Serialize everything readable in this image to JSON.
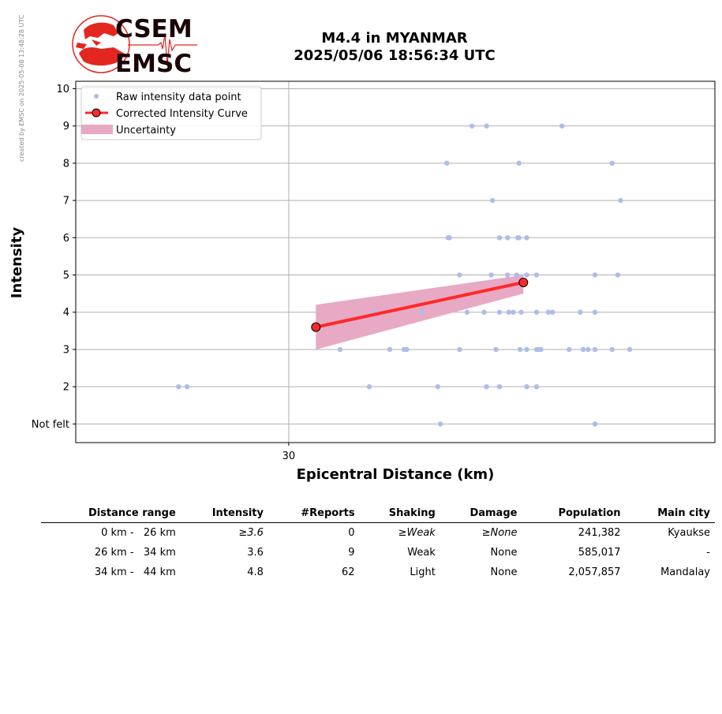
{
  "credit": "created by EMSC on 2025-05-08 13:48:28 UTC",
  "logo": {
    "line1": "CSEM",
    "line2": "EMSC"
  },
  "title": {
    "line1": "M4.4 in MYANMAR",
    "line2": "2025/05/06 18:56:34 UTC"
  },
  "colors": {
    "raw": "#aebde8",
    "curve": "#ff2a2a",
    "uncertainty": "#e8a9c4",
    "brand": "#e3261f"
  },
  "chart_data": {
    "type": "scatter",
    "xlabel": "Epicentral Distance (km)",
    "ylabel": "Intensity",
    "xscale": "log",
    "xlim": [
      19.96,
      67.8
    ],
    "ylim": [
      0.5,
      10.2
    ],
    "xticks": [
      30
    ],
    "xtick_labels": [
      "30"
    ],
    "yticks": [
      1,
      2,
      3,
      4,
      5,
      6,
      7,
      8,
      9,
      10
    ],
    "ytick_labels": [
      "Not felt",
      "2",
      "3",
      "4",
      "5",
      "6",
      "7",
      "8",
      "9",
      "10"
    ],
    "grid": true,
    "legend_position": "top-left",
    "legend": [
      "Raw intensity data point",
      "Corrected Intensity Curve",
      "Uncertainty"
    ],
    "raw_points": [
      [
        24.3,
        2
      ],
      [
        24.7,
        2
      ],
      [
        33.1,
        3
      ],
      [
        35.3,
        4
      ],
      [
        35.0,
        2
      ],
      [
        36.4,
        3
      ],
      [
        37.4,
        3
      ],
      [
        37.6,
        3
      ],
      [
        38.7,
        4
      ],
      [
        39.9,
        2
      ],
      [
        40.1,
        1
      ],
      [
        40.7,
        6
      ],
      [
        40.8,
        6
      ],
      [
        40.6,
        8
      ],
      [
        41.6,
        5
      ],
      [
        41.6,
        3
      ],
      [
        42.2,
        4
      ],
      [
        42.6,
        9
      ],
      [
        43.6,
        4
      ],
      [
        43.8,
        9
      ],
      [
        43.8,
        2
      ],
      [
        44.2,
        5
      ],
      [
        44.3,
        7
      ],
      [
        44.6,
        3
      ],
      [
        44.9,
        6
      ],
      [
        44.9,
        4
      ],
      [
        44.9,
        2
      ],
      [
        44.9,
        2
      ],
      [
        45.6,
        6
      ],
      [
        45.6,
        5
      ],
      [
        45.7,
        4
      ],
      [
        46.1,
        4
      ],
      [
        46.4,
        5
      ],
      [
        46.5,
        6
      ],
      [
        46.6,
        6
      ],
      [
        46.6,
        8
      ],
      [
        46.7,
        3
      ],
      [
        46.8,
        4
      ],
      [
        47.3,
        6
      ],
      [
        47.3,
        5
      ],
      [
        47.3,
        3
      ],
      [
        47.3,
        2
      ],
      [
        48.2,
        5
      ],
      [
        48.2,
        4
      ],
      [
        48.2,
        3
      ],
      [
        48.2,
        2
      ],
      [
        48.4,
        3
      ],
      [
        48.6,
        3
      ],
      [
        49.3,
        4
      ],
      [
        49.7,
        4
      ],
      [
        50.6,
        9
      ],
      [
        51.3,
        3
      ],
      [
        52.4,
        4
      ],
      [
        52.7,
        3
      ],
      [
        53.2,
        3
      ],
      [
        53.9,
        5
      ],
      [
        53.9,
        4
      ],
      [
        53.9,
        3
      ],
      [
        53.9,
        1
      ],
      [
        55.7,
        8
      ],
      [
        55.7,
        3
      ],
      [
        56.3,
        5
      ],
      [
        56.6,
        7
      ],
      [
        57.6,
        3
      ]
    ],
    "corrected_curve": {
      "x": [
        31.6,
        47.0
      ],
      "y": [
        3.6,
        4.8
      ]
    },
    "uncertainty": {
      "x": [
        31.6,
        47.0
      ],
      "lower": [
        3.0,
        4.5
      ],
      "upper": [
        4.2,
        5.0
      ]
    }
  },
  "table": {
    "headers": [
      "Distance range",
      "Intensity",
      "#Reports",
      "Shaking",
      "Damage",
      "Population",
      "Main city"
    ],
    "rows": [
      {
        "range": "0 km -   26 km",
        "intensity": "≥3.6",
        "reports": "0",
        "shaking": "≥Weak",
        "damage": "≥None",
        "population": "241,382",
        "city": "Kyaukse",
        "italic": true
      },
      {
        "range": "26 km -   34 km",
        "intensity": "3.6",
        "reports": "9",
        "shaking": "Weak",
        "damage": "None",
        "population": "585,017",
        "city": "-",
        "italic": false
      },
      {
        "range": "34 km -   44 km",
        "intensity": "4.8",
        "reports": "62",
        "shaking": "Light",
        "damage": "None",
        "population": "2,057,857",
        "city": "Mandalay",
        "italic": false
      }
    ]
  }
}
